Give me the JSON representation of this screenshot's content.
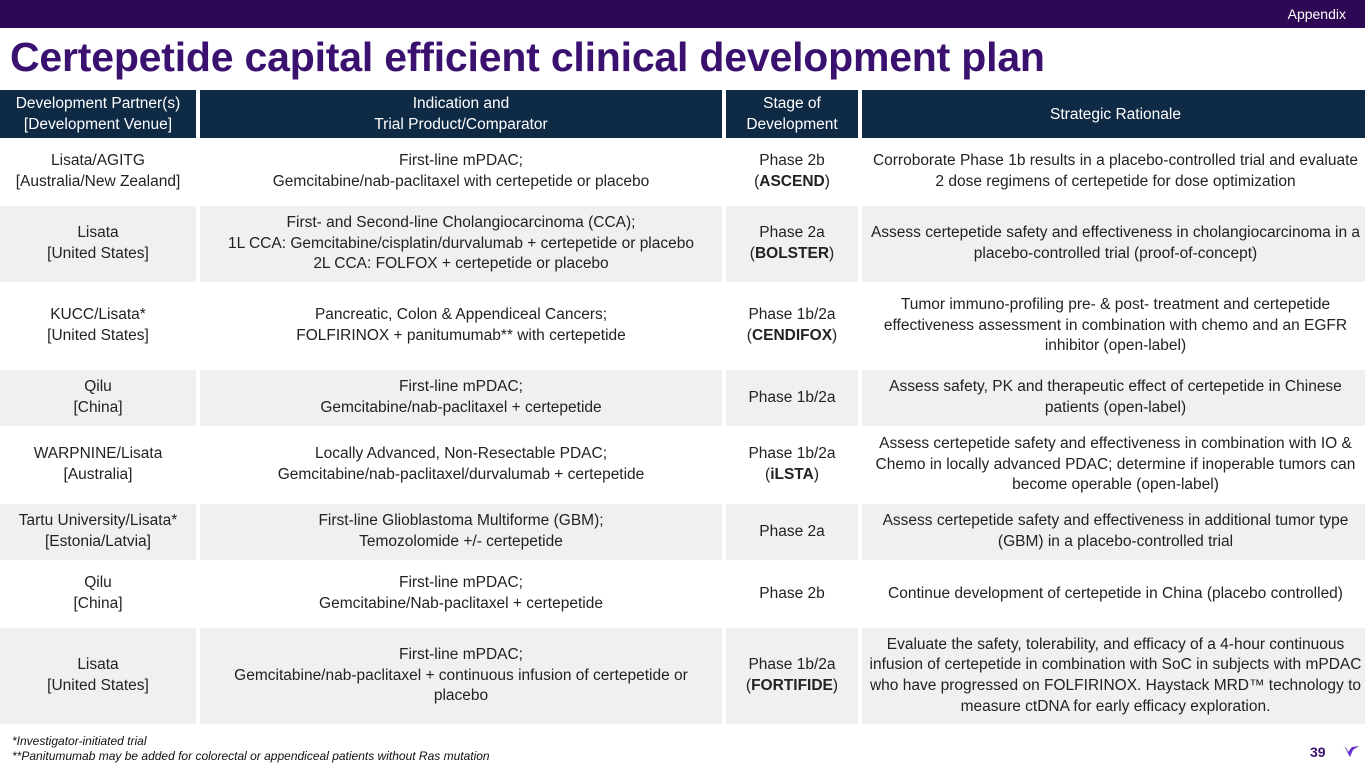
{
  "header": {
    "section_label": "Appendix"
  },
  "title": "Certepetide capital efficient clinical development plan",
  "table": {
    "headers": {
      "partner_l1": "Development Partner(s)",
      "partner_l2": "[Development Venue]",
      "indication_l1": "Indication and",
      "indication_l2": "Trial Product/Comparator",
      "stage_l1": "Stage of",
      "stage_l2": "Development",
      "rationale": "Strategic Rationale"
    },
    "rows": [
      {
        "partner": "Lisata/AGITG",
        "venue": "[Australia/New Zealand]",
        "indication": "First-line mPDAC;",
        "product_lines": [
          "Gemcitabine/nab-paclitaxel with certepetide or placebo"
        ],
        "stage": "Phase 2b",
        "trial_open": "(",
        "trial": "ASCEND",
        "trial_close": ")",
        "rationale": "Corroborate Phase 1b results in a placebo-controlled trial and evaluate 2 dose regimens of certepetide for dose optimization"
      },
      {
        "partner": "Lisata",
        "venue": "[United States]",
        "indication": "First- and Second-line Cholangiocarcinoma (CCA);",
        "product_lines": [
          "1L CCA: Gemcitabine/cisplatin/durvalumab + certepetide or placebo",
          "2L CCA: FOLFOX + certepetide or placebo"
        ],
        "stage": "Phase 2a",
        "trial_open": "(",
        "trial": "BOLSTER",
        "trial_close": ")",
        "rationale": "Assess certepetide safety and effectiveness in cholangiocarcinoma in a placebo-controlled trial (proof-of-concept)"
      },
      {
        "partner": "KUCC/Lisata*",
        "venue": "[United States]",
        "indication": "Pancreatic, Colon & Appendiceal Cancers;",
        "product_lines": [
          "FOLFIRINOX + panitumumab** with certepetide"
        ],
        "stage": "Phase 1b/2a",
        "trial_open": "(",
        "trial": "CENDIFOX",
        "trial_close": ")",
        "rationale": "Tumor immuno-profiling pre- & post- treatment and certepetide effectiveness assessment in combination with chemo and an EGFR inhibitor (open-label)"
      },
      {
        "partner": "Qilu",
        "venue": "[China]",
        "indication": "First-line mPDAC;",
        "product_lines": [
          "Gemcitabine/nab-paclitaxel + certepetide"
        ],
        "stage": "Phase 1b/2a",
        "trial_open": "",
        "trial": "",
        "trial_close": "",
        "rationale": "Assess safety, PK and therapeutic effect of certepetide in Chinese patients (open-label)"
      },
      {
        "partner": "WARPNINE/Lisata",
        "venue": "[Australia]",
        "indication": "Locally Advanced, Non-Resectable PDAC;",
        "product_lines": [
          "Gemcitabine/nab-paclitaxel/durvalumab + certepetide"
        ],
        "stage": "Phase 1b/2a",
        "trial_open": "(",
        "trial": "iLSTA",
        "trial_close": ")",
        "rationale": "Assess certepetide safety and effectiveness in combination with IO & Chemo in locally advanced PDAC; determine if inoperable tumors can become operable (open-label)"
      },
      {
        "partner": "Tartu University/Lisata*",
        "venue": "[Estonia/Latvia]",
        "indication": "First-line Glioblastoma Multiforme (GBM);",
        "product_lines": [
          "Temozolomide +/- certepetide"
        ],
        "stage": "Phase 2a",
        "trial_open": "",
        "trial": "",
        "trial_close": "",
        "rationale": "Assess certepetide safety and effectiveness in additional tumor type (GBM) in a placebo-controlled trial"
      },
      {
        "partner": "Qilu",
        "venue": "[China]",
        "indication": "First-line mPDAC;",
        "product_lines": [
          "Gemcitabine/Nab-paclitaxel + certepetide"
        ],
        "stage": "Phase 2b",
        "trial_open": "",
        "trial": "",
        "trial_close": "",
        "rationale": "Continue development of certepetide in China (placebo controlled)"
      },
      {
        "partner": "Lisata",
        "venue": "[United States]",
        "indication": "First-line mPDAC;",
        "product_lines": [
          "Gemcitabine/nab-paclitaxel + continuous infusion of certepetide or placebo"
        ],
        "stage": "Phase 1b/2a",
        "trial_open": "(",
        "trial": "FORTIFIDE",
        "trial_close": ")",
        "rationale": "Evaluate the safety, tolerability, and efficacy of a 4-hour continuous infusion of certepetide in combination with SoC in subjects with mPDAC who have progressed on FOLFIRINOX. Haystack MRD™ technology to measure ctDNA for early efficacy exploration."
      }
    ]
  },
  "footnotes": [
    "*Investigator-initiated trial",
    "**Panitumumab may be added for colorectal or appendiceal patients without Ras mutation"
  ],
  "page_number": "39",
  "colors": {
    "brand_purple": "#3b1170",
    "header_navy": "#0f2a45",
    "top_bar": "#2e0854",
    "logo_violet": "#6a2fd0"
  },
  "logo_icon": "lisata-bird-logo-icon"
}
